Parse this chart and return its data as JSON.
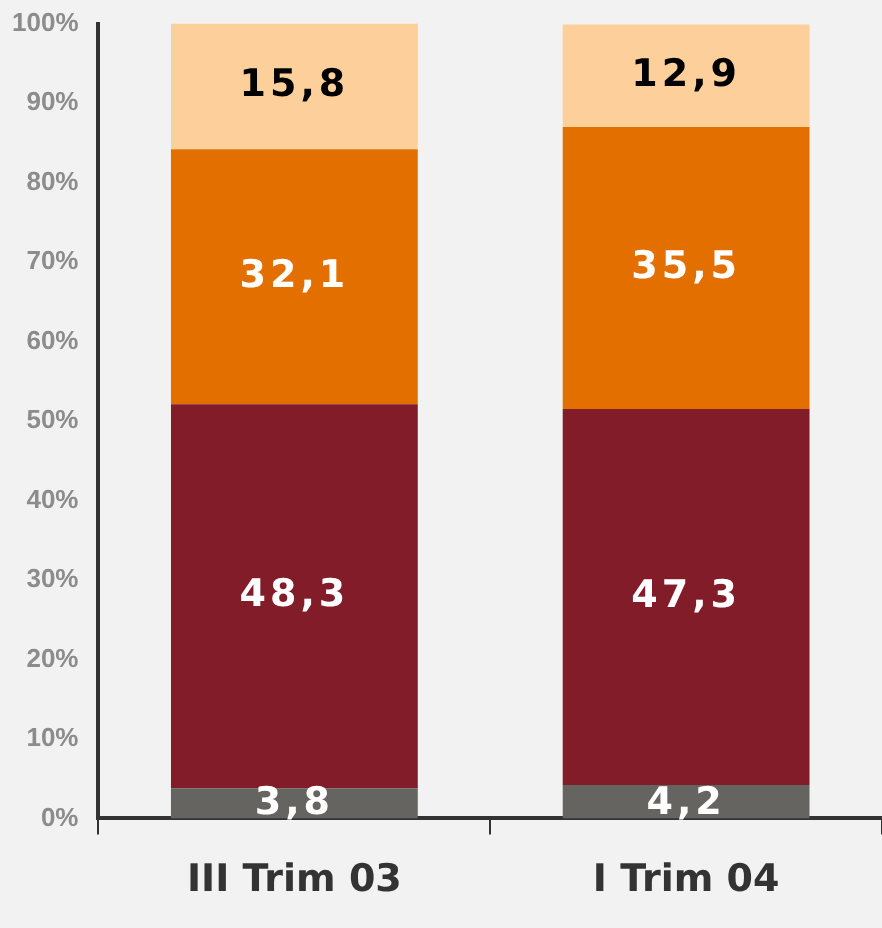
{
  "chart_data": {
    "type": "bar",
    "stacked": true,
    "categories": [
      "III Trim 03",
      "I Trim 04"
    ],
    "series": [
      {
        "color": "#666460",
        "values": [
          3.8,
          4.2
        ],
        "value_labels": [
          "3,8",
          "4,2"
        ]
      },
      {
        "color": "#821c29",
        "values": [
          48.3,
          47.3
        ],
        "value_labels": [
          "48,3",
          "47,3"
        ]
      },
      {
        "color": "#e36f00",
        "values": [
          32.1,
          35.5
        ],
        "value_labels": [
          "32,1",
          "35,5"
        ]
      },
      {
        "color": "#fdd09b",
        "values": [
          15.8,
          12.9
        ],
        "value_labels": [
          "15,8",
          "12,9"
        ]
      }
    ],
    "ylim": [
      0,
      100
    ],
    "yticks": [
      {
        "value": 0,
        "label": "0%"
      },
      {
        "value": 10,
        "label": "10%"
      },
      {
        "value": 20,
        "label": "20%"
      },
      {
        "value": 30,
        "label": "30%"
      },
      {
        "value": 40,
        "label": "40%"
      },
      {
        "value": 50,
        "label": "50%"
      },
      {
        "value": 60,
        "label": "60%"
      },
      {
        "value": 70,
        "label": "70%"
      },
      {
        "value": 80,
        "label": "80%"
      },
      {
        "value": 90,
        "label": "90%"
      },
      {
        "value": 100,
        "label": "100%"
      }
    ],
    "grid": false,
    "legend": false
  }
}
